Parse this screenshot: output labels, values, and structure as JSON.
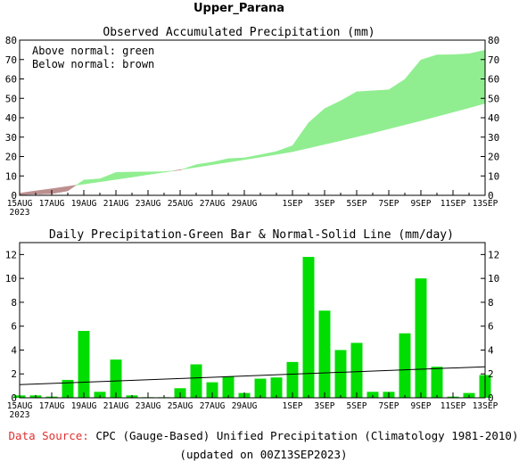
{
  "page_title": "Upper_Parana",
  "footer": {
    "source_label": "Data Source:",
    "source_text": "CPC (Gauge-Based) Unified Precipitation (Climatology 1981-2010)",
    "updated": "(updated on 00Z13SEP2023)"
  },
  "colors": {
    "above": "#90ee90",
    "below": "#bc8f8f",
    "bar": "#00dd00",
    "normal_line": "#000000",
    "source_label": "#e03030"
  },
  "chart_data": [
    {
      "type": "area",
      "title": "Observed Accumulated Precipitation (mm)",
      "legend_lines": [
        "Above normal: green",
        "Below normal: brown"
      ],
      "legend_position": "top-left",
      "xlabel": "",
      "ylabel": "",
      "ylim": [
        0,
        80
      ],
      "yticks": [
        0,
        10,
        20,
        30,
        40,
        50,
        60,
        70,
        80
      ],
      "xtick_labels": [
        "15AUG",
        "17AUG",
        "19AUG",
        "21AUG",
        "23AUG",
        "25AUG",
        "27AUG",
        "29AUG",
        "1SEP",
        "3SEP",
        "5SEP",
        "7SEP",
        "9SEP",
        "11SEP",
        "13SEP"
      ],
      "xtick_days": [
        0,
        2,
        4,
        6,
        8,
        10,
        12,
        14,
        17,
        19,
        21,
        23,
        25,
        27,
        29
      ],
      "first_label_year": "2023",
      "grid": false,
      "series": [
        {
          "name": "Observed",
          "x_day": [
            0,
            1,
            2,
            3,
            4,
            5,
            6,
            7,
            8,
            9,
            10,
            11,
            12,
            13,
            14,
            15,
            16,
            17,
            18,
            19,
            20,
            21,
            22,
            23,
            24,
            25,
            26,
            27,
            28,
            29
          ],
          "values": [
            0.3,
            0.6,
            0.8,
            2.3,
            7.9,
            8.5,
            11.8,
            12.0,
            12.1,
            12.2,
            13.0,
            15.8,
            17.1,
            18.9,
            19.3,
            20.9,
            22.6,
            25.6,
            37.4,
            44.7,
            48.7,
            53.4,
            53.9,
            54.4,
            59.8,
            69.8,
            72.4,
            72.5,
            73.0,
            74.8
          ]
        },
        {
          "name": "Normal",
          "x_day": [
            0,
            1,
            2,
            3,
            4,
            5,
            6,
            7,
            8,
            9,
            10,
            11,
            12,
            13,
            14,
            15,
            16,
            17,
            18,
            19,
            20,
            21,
            22,
            23,
            24,
            25,
            26,
            27,
            28,
            29
          ],
          "values": [
            1.1,
            2.3,
            3.4,
            4.6,
            5.8,
            7.0,
            8.2,
            9.4,
            10.7,
            11.9,
            13.2,
            14.5,
            15.8,
            17.1,
            18.4,
            19.7,
            21.1,
            22.5,
            24.4,
            26.3,
            28.2,
            30.2,
            32.2,
            34.3,
            36.4,
            38.5,
            40.7,
            42.9,
            45.1,
            47.4
          ]
        }
      ]
    },
    {
      "type": "bar",
      "title": "Daily Precipitation-Green Bar & Normal-Solid Line (mm/day)",
      "xlabel": "",
      "ylabel": "",
      "ylim": [
        0,
        13
      ],
      "yticks": [
        0,
        2,
        4,
        6,
        8,
        10,
        12
      ],
      "xtick_labels": [
        "15AUG",
        "17AUG",
        "19AUG",
        "21AUG",
        "23AUG",
        "25AUG",
        "27AUG",
        "29AUG",
        "1SEP",
        "3SEP",
        "5SEP",
        "7SEP",
        "9SEP",
        "11SEP",
        "13SEP"
      ],
      "xtick_days": [
        0,
        2,
        4,
        6,
        8,
        10,
        12,
        14,
        17,
        19,
        21,
        23,
        25,
        27,
        29
      ],
      "first_label_year": "2023",
      "grid": false,
      "series": [
        {
          "name": "Daily Precipitation",
          "x_day": [
            0,
            1,
            2,
            3,
            4,
            5,
            6,
            7,
            8,
            9,
            10,
            11,
            12,
            13,
            14,
            15,
            16,
            17,
            18,
            19,
            20,
            21,
            22,
            23,
            24,
            25,
            26,
            27,
            28,
            29
          ],
          "values": [
            0.2,
            0.2,
            0.1,
            1.5,
            5.6,
            0.5,
            3.2,
            0.2,
            0.05,
            0.05,
            0.8,
            2.8,
            1.3,
            1.8,
            0.4,
            1.6,
            1.7,
            3.0,
            11.8,
            7.3,
            4.0,
            4.6,
            0.5,
            0.5,
            5.4,
            10.0,
            2.6,
            0.1,
            0.4,
            1.9
          ]
        },
        {
          "name": "Normal",
          "x_day": [
            0,
            29
          ],
          "values": [
            1.1,
            2.6
          ]
        }
      ]
    }
  ]
}
